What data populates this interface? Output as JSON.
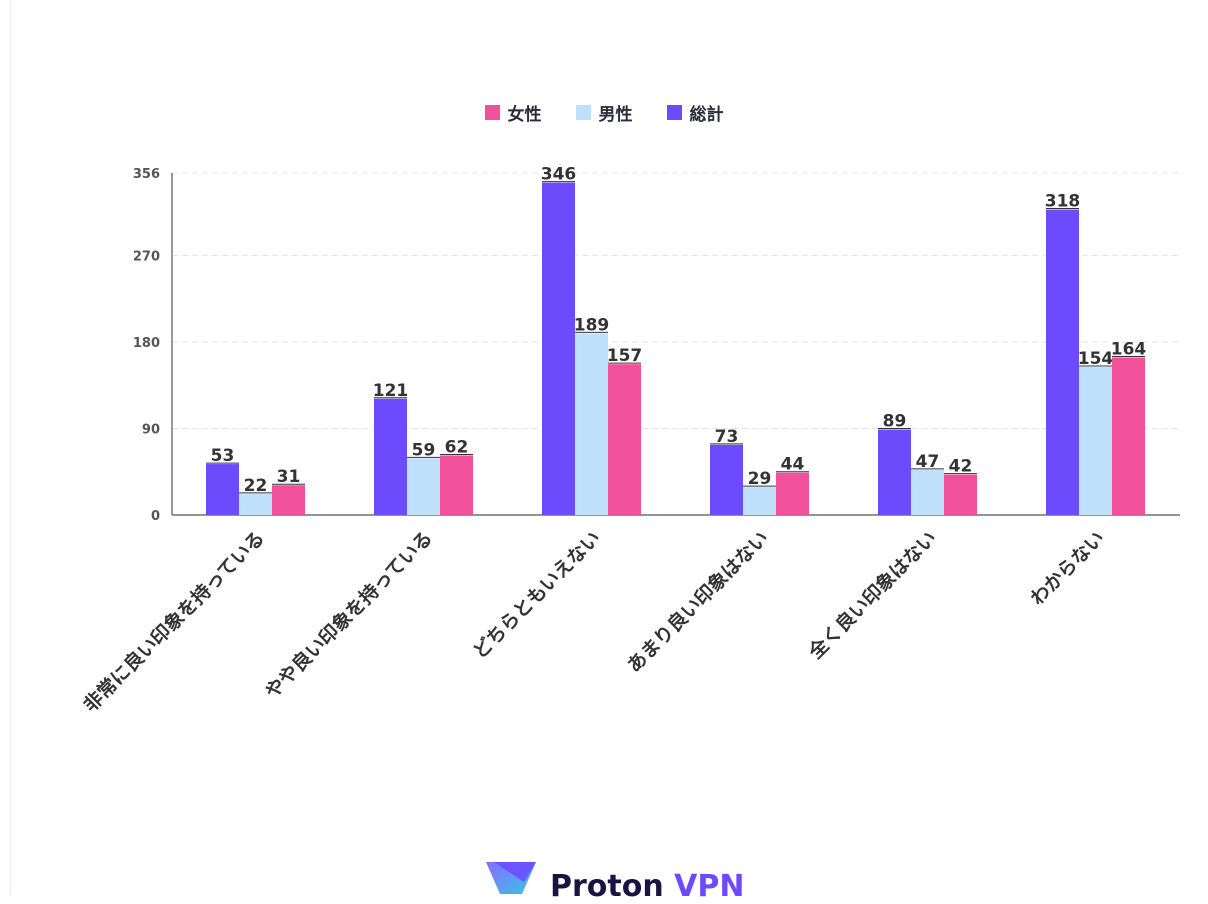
{
  "colors": {
    "female": "#f0519a",
    "male": "#bfe0fb",
    "total": "#6b4bfb",
    "grid": "#e4e4e4",
    "axis": "#555555",
    "text": "#333333"
  },
  "legend": [
    {
      "label": "女性",
      "color": "#f0519a"
    },
    {
      "label": "男性",
      "color": "#bfe0fb"
    },
    {
      "label": "総計",
      "color": "#6b4bfb"
    }
  ],
  "logo": {
    "brand": "Proton",
    "product": "VPN"
  },
  "chart_data": {
    "type": "bar",
    "title": "",
    "xlabel": "",
    "ylabel": "",
    "ylim": [
      0,
      356
    ],
    "yticks": [
      0,
      90,
      180,
      270,
      356
    ],
    "grid": true,
    "legend_position": "top-center",
    "categories": [
      "非常に良い印象を持っている",
      "やや良い印象を持っている",
      "どちらともいえない",
      "あまり良い印象はない",
      "全く良い印象はない",
      "わからない"
    ],
    "series": [
      {
        "name": "総計",
        "color": "#6b4bfb",
        "values": [
          53,
          121,
          346,
          73,
          89,
          318
        ]
      },
      {
        "name": "男性",
        "color": "#bfe0fb",
        "values": [
          22,
          59,
          189,
          29,
          47,
          154
        ]
      },
      {
        "name": "女性",
        "color": "#f0519a",
        "values": [
          31,
          62,
          157,
          44,
          42,
          164
        ]
      }
    ]
  }
}
